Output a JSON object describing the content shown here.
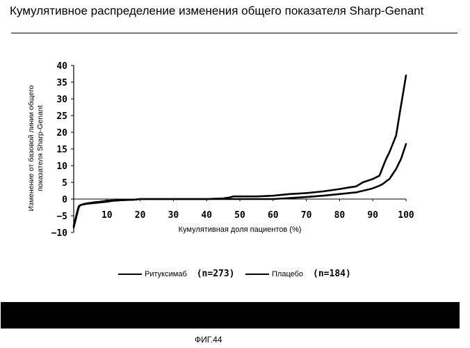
{
  "page": {
    "title": "Кумулятивное распределение изменения общего показателя Sharp-Genant",
    "figure_label": "ФИГ.44"
  },
  "legend": {
    "items": [
      {
        "label": "Ритуксимаб",
        "n": "(n=273)"
      },
      {
        "label": "Плацебо",
        "n": "(n=184)"
      }
    ]
  },
  "colors": {
    "line": "#000000",
    "bar": "#000000",
    "background": "#ffffff"
  },
  "chart_data": {
    "type": "line",
    "title": "",
    "xlabel": "Кумулятивная доля пациентов (%)",
    "ylabel_lines": [
      "Изменение от базовой линии общего",
      "показателя Sharp-Genant"
    ],
    "xlim": [
      0,
      100
    ],
    "ylim": [
      -10,
      40
    ],
    "xticks": [
      10,
      20,
      30,
      40,
      50,
      60,
      70,
      80,
      90,
      100
    ],
    "yticks": [
      -10,
      -5,
      0,
      5,
      10,
      15,
      20,
      25,
      30,
      35,
      40
    ],
    "ytick_labels": [
      "−10",
      "−5",
      "0",
      "5",
      "10",
      "15",
      "20",
      "25",
      "30",
      "35",
      "40"
    ],
    "grid": false,
    "legend_position": "bottom",
    "series": [
      {
        "name": "Ритуксимаб",
        "x": [
          0,
          0.5,
          1,
          1.5,
          2,
          3,
          4,
          6,
          8,
          10,
          12,
          15,
          18,
          20,
          25,
          30,
          40,
          45,
          47,
          50,
          55,
          60,
          65,
          70,
          75,
          80,
          85,
          88,
          90,
          92,
          93,
          94,
          95,
          96,
          97,
          98,
          98.5,
          99,
          99.5,
          100
        ],
        "y": [
          -8.5,
          -6.5,
          -4.5,
          -2.5,
          -1.8,
          -1.5,
          -1.3,
          -1.0,
          -0.8,
          -0.5,
          -0.4,
          -0.3,
          -0.2,
          0,
          0,
          0,
          0,
          0,
          0,
          0,
          0,
          0,
          0.3,
          0.6,
          1.0,
          1.5,
          2.0,
          2.7,
          3.2,
          4.0,
          4.5,
          5.3,
          6.0,
          7.5,
          9.0,
          11.0,
          12.0,
          13.5,
          15.0,
          16.5
        ]
      },
      {
        "name": "Плацебо",
        "x": [
          0,
          0.5,
          1,
          1.5,
          2,
          3,
          4,
          6,
          8,
          10,
          12,
          15,
          18,
          20,
          25,
          30,
          40,
          45,
          47,
          48,
          50,
          55,
          60,
          65,
          70,
          75,
          80,
          83,
          85,
          87,
          90,
          92,
          93,
          94,
          95,
          96,
          97,
          98,
          98.5,
          99,
          99.5,
          100
        ],
        "y": [
          -8.0,
          -6.0,
          -4.0,
          -2.2,
          -1.8,
          -1.6,
          -1.4,
          -1.2,
          -1.0,
          -0.8,
          -0.5,
          -0.3,
          -0.2,
          0,
          0,
          0,
          0,
          0.2,
          0.5,
          0.8,
          0.8,
          0.8,
          1.0,
          1.5,
          1.8,
          2.3,
          3.0,
          3.5,
          3.8,
          5.0,
          6.0,
          7.0,
          9.5,
          12.0,
          14.0,
          16.5,
          19.0,
          25.0,
          28.0,
          31.0,
          34.0,
          37.0
        ]
      }
    ]
  }
}
